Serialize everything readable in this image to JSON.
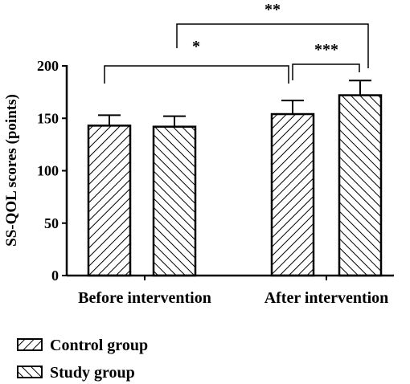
{
  "chart_data": {
    "type": "bar",
    "title": "",
    "xlabel": "",
    "ylabel": "SS-QOL scores (points)",
    "ylim": [
      0,
      200
    ],
    "yticks": [
      0,
      50,
      100,
      150,
      200
    ],
    "categories": [
      "Before intervention",
      "After intervention"
    ],
    "series": [
      {
        "name": "Control group",
        "values": [
          143,
          154
        ],
        "errors": [
          10,
          13
        ],
        "pattern": "hatch-up"
      },
      {
        "name": "Study group",
        "values": [
          142,
          172
        ],
        "errors": [
          10,
          14
        ],
        "pattern": "hatch-down"
      }
    ],
    "significance": [
      {
        "label": "*",
        "from": "Before intervention",
        "to": "After intervention · Control group"
      },
      {
        "label": "***",
        "from": "After intervention · Control group",
        "to": "After intervention · Study group"
      },
      {
        "label": "**",
        "from": "Before-to-after comparison",
        "to": "After intervention · Study group"
      }
    ],
    "legend_position": "bottom-left",
    "grid": false
  }
}
